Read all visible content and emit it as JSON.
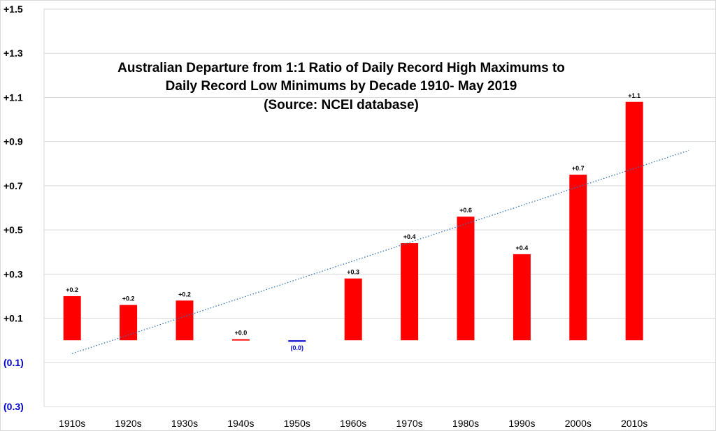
{
  "chart_data": {
    "type": "bar",
    "title_lines": [
      "Australian Departure from 1:1 Ratio of Daily Record High Maximums to",
      "Daily Record Low Minimums by Decade 1910- May 2019",
      "(Source: NCEI database)"
    ],
    "xlabel": "",
    "ylabel": "",
    "categories": [
      "1910s",
      "1920s",
      "1930s",
      "1940s",
      "1950s",
      "1960s",
      "1970s",
      "1980s",
      "1990s",
      "2000s",
      "2010s"
    ],
    "values": [
      0.2,
      0.16,
      0.18,
      0.005,
      -0.005,
      0.28,
      0.44,
      0.56,
      0.39,
      0.75,
      1.08
    ],
    "data_labels": [
      "+0.2",
      "+0.2",
      "+0.2",
      "+0.0",
      "(0.0)",
      "+0.3",
      "+0.4",
      "+0.6",
      "+0.4",
      "+0.7",
      "+1.1"
    ],
    "ylim": [
      -0.3,
      1.5
    ],
    "yticks": [
      1.5,
      1.3,
      1.1,
      0.9,
      0.7,
      0.5,
      0.3,
      0.1,
      -0.1,
      -0.3
    ],
    "ytick_labels": [
      "+1.5",
      "+1.3",
      "+1.1",
      "+0.9",
      "+0.7",
      "+0.5",
      "+0.3",
      "+0.1",
      "(0.1)",
      "(0.3)"
    ],
    "grid": true,
    "trendline": {
      "style": "dotted",
      "start": -0.06,
      "end": 0.86
    },
    "colors": {
      "positive_bar": "#ff0000",
      "negative_bar": "#0000cc",
      "positive_label": "#000000",
      "negative_label": "#0000cc",
      "positive_tick": "#000000",
      "negative_tick": "#0000cc",
      "trendline": "#2e75b6",
      "grid": "#d9d9d9"
    }
  }
}
